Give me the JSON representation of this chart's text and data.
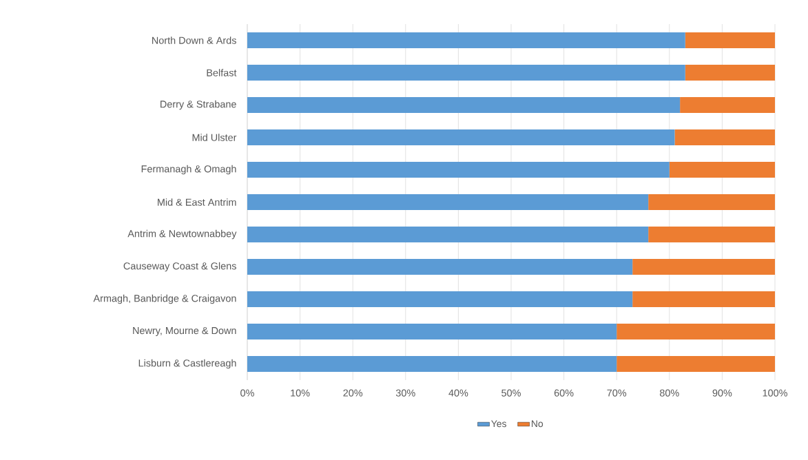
{
  "chart_data": {
    "type": "bar",
    "orientation": "horizontal",
    "stacked": true,
    "categories": [
      "North Down & Ards",
      "Belfast",
      "Derry & Strabane",
      "Mid Ulster",
      "Fermanagh & Omagh",
      "Mid & East Antrim",
      "Antrim & Newtownabbey",
      "Causeway Coast & Glens",
      "Armagh, Banbridge & Craigavon",
      "Newry, Mourne & Down",
      "Lisburn & Castlereagh"
    ],
    "series": [
      {
        "name": "Yes",
        "color": "#5b9bd5",
        "values": [
          83,
          83,
          82,
          81,
          80,
          76,
          76,
          73,
          73,
          70,
          70
        ]
      },
      {
        "name": "No",
        "color": "#ed7d31",
        "values": [
          17,
          17,
          18,
          19,
          20,
          24,
          24,
          27,
          27,
          30,
          30
        ]
      }
    ],
    "xlim": [
      0,
      100
    ],
    "xticks": [
      {
        "value": 0,
        "label": "0%"
      },
      {
        "value": 10,
        "label": "10%"
      },
      {
        "value": 20,
        "label": "20%"
      },
      {
        "value": 30,
        "label": "30%"
      },
      {
        "value": 40,
        "label": "40%"
      },
      {
        "value": 50,
        "label": "50%"
      },
      {
        "value": 60,
        "label": "60%"
      },
      {
        "value": 70,
        "label": "70%"
      },
      {
        "value": 80,
        "label": "80%"
      },
      {
        "value": 90,
        "label": "90%"
      },
      {
        "value": 100,
        "label": "100%"
      }
    ],
    "grid": "x",
    "legend": "bottom"
  }
}
